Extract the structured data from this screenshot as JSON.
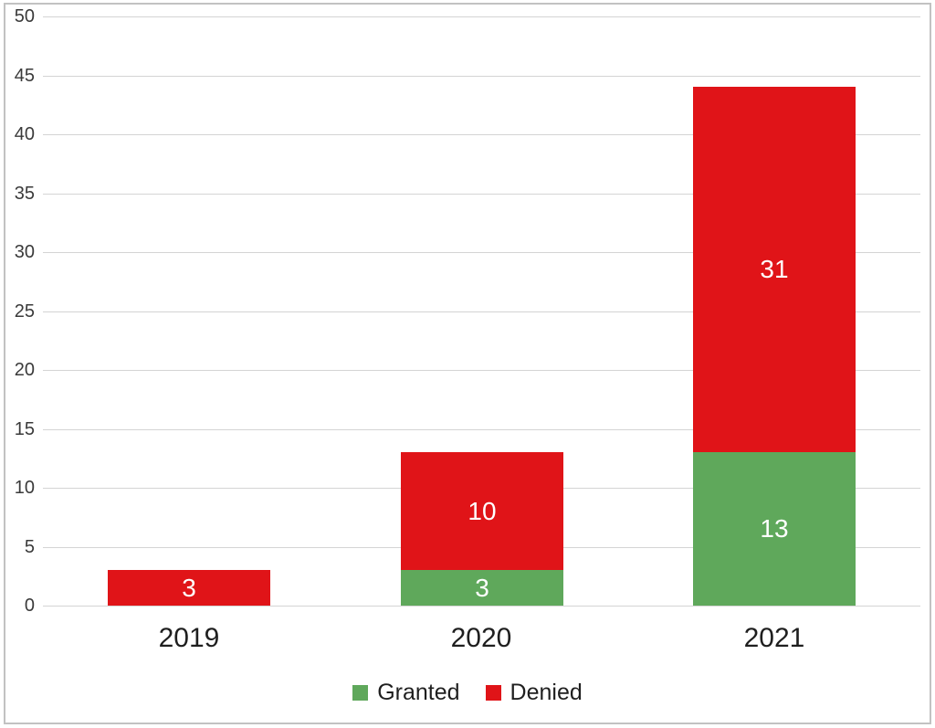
{
  "chart_data": {
    "type": "bar",
    "stacked": true,
    "title": "",
    "xlabel": "",
    "ylabel": "",
    "categories": [
      "2019",
      "2020",
      "2021"
    ],
    "series": [
      {
        "name": "Granted",
        "color": "#5FA85B",
        "values": [
          0,
          3,
          13
        ]
      },
      {
        "name": "Denied",
        "color": "#E01418",
        "values": [
          3,
          10,
          31
        ]
      }
    ],
    "stack_totals": [
      3,
      13,
      44
    ],
    "data_labels": {
      "color": "#ffffff",
      "hide_zero": true
    },
    "ylim": [
      0,
      50
    ],
    "ytick_interval": 5,
    "y_ticks": [
      0,
      5,
      10,
      15,
      20,
      25,
      30,
      35,
      40,
      45,
      50
    ],
    "grid": true,
    "legend_position": "bottom"
  },
  "legend": {
    "items": [
      {
        "label": "Granted",
        "color": "#5FA85B"
      },
      {
        "label": "Denied",
        "color": "#E01418"
      }
    ]
  },
  "colors": {
    "background": "#ffffff",
    "frame_border": "#c2c2c2",
    "gridline": "#d4d4d4",
    "axis_text": "#3a3a3a",
    "category_text": "#1f1f1f",
    "legend_text": "#1f1f1f",
    "bar_label_text": "#ffffff"
  }
}
